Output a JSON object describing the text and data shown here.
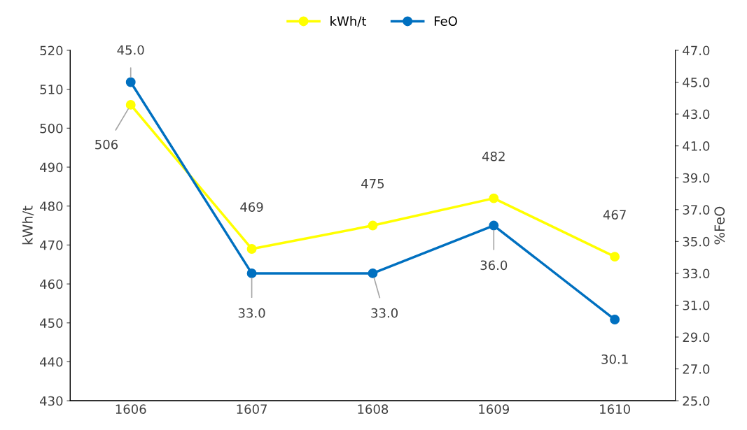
{
  "chart_data": {
    "type": "line",
    "categories": [
      "1606",
      "1607",
      "1608",
      "1609",
      "1610"
    ],
    "series": [
      {
        "name": "kWh/t",
        "color": "#ffff00",
        "values": [
          506,
          469,
          475,
          482,
          467
        ],
        "value_labels": [
          "506",
          "469",
          "475",
          "482",
          "467"
        ]
      },
      {
        "name": "FeO",
        "color": "#0070c0",
        "axis": "y2",
        "values": [
          45.0,
          33.0,
          33.0,
          36.0,
          30.1
        ],
        "value_labels": [
          "45.0",
          "33.0",
          "33.0",
          "36.0",
          "30.1"
        ]
      }
    ],
    "ylabel": "kWh/t",
    "y2label": "%FeO",
    "ylim": [
      430,
      520
    ],
    "yticks": [
      430,
      440,
      450,
      460,
      470,
      480,
      490,
      500,
      510,
      520
    ],
    "y2lim": [
      25,
      47
    ],
    "y2ticks": [
      {
        "value": 25,
        "label": "25.0"
      },
      {
        "value": 27,
        "label": "27.0"
      },
      {
        "value": 29,
        "label": "29.0"
      },
      {
        "value": 31,
        "label": "31.0"
      },
      {
        "value": 33,
        "label": "33.0"
      },
      {
        "value": 35,
        "label": "35.0"
      },
      {
        "value": 37,
        "label": "37.0"
      },
      {
        "value": 39,
        "label": "39.0"
      },
      {
        "value": 41,
        "label": "41.0"
      },
      {
        "value": 43,
        "label": "43.0"
      },
      {
        "value": 45,
        "label": "45.0"
      },
      {
        "value": 47,
        "label": "47.0"
      }
    ],
    "legend": "top",
    "grid": false,
    "marker": "circle",
    "line_style": "solid"
  }
}
